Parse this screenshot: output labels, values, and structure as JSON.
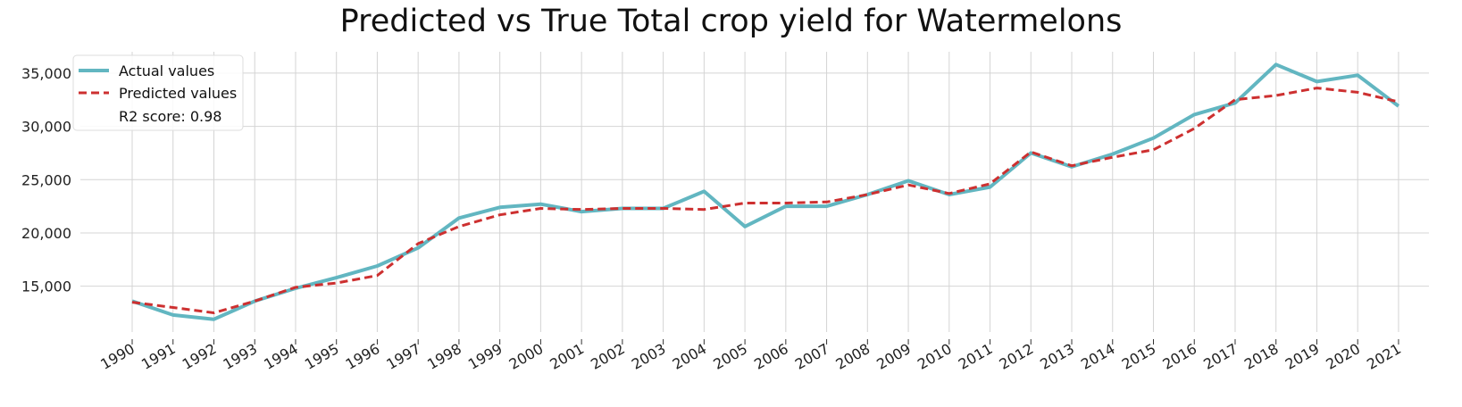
{
  "chart_data": {
    "type": "line",
    "title": "Predicted vs True Total crop yield for Watermelons",
    "xlabel": "",
    "ylabel": "",
    "x": [
      "1990",
      "1991",
      "1992",
      "1993",
      "1994",
      "1995",
      "1996",
      "1997",
      "1998",
      "1999",
      "2000",
      "2001",
      "2002",
      "2003",
      "2004",
      "2005",
      "2006",
      "2007",
      "2008",
      "2009",
      "2010",
      "2011",
      "2012",
      "2013",
      "2014",
      "2015",
      "2016",
      "2017",
      "2018",
      "2019",
      "2020",
      "2021"
    ],
    "series": [
      {
        "name": "Actual values",
        "color": "#62b6c1",
        "style": "solid",
        "values": [
          13600,
          12300,
          11900,
          13600,
          14800,
          15800,
          16900,
          18600,
          21400,
          22400,
          22700,
          22000,
          22300,
          22300,
          23900,
          20600,
          22500,
          22500,
          23600,
          24900,
          23600,
          24300,
          27500,
          26200,
          27400,
          28900,
          31100,
          32200,
          35800,
          34200,
          34800,
          31900
        ]
      },
      {
        "name": "Predicted values",
        "color": "#cd3030",
        "style": "dashed",
        "values": [
          13500,
          13000,
          12500,
          13600,
          14900,
          15300,
          16000,
          19000,
          20600,
          21700,
          22300,
          22200,
          22300,
          22300,
          22200,
          22800,
          22800,
          22900,
          23600,
          24500,
          23700,
          24600,
          27600,
          26300,
          27100,
          27800,
          29800,
          32500,
          32900,
          33600,
          33200,
          32300
        ]
      }
    ],
    "annotation": "R2 score: 0.98",
    "yticks": [
      15000,
      20000,
      25000,
      30000,
      35000
    ],
    "ytick_labels": [
      "15,000",
      "20,000",
      "25,000",
      "30,000",
      "35,000"
    ],
    "ylim": [
      10700,
      37000
    ],
    "grid": true,
    "legend_position": "top-left"
  }
}
